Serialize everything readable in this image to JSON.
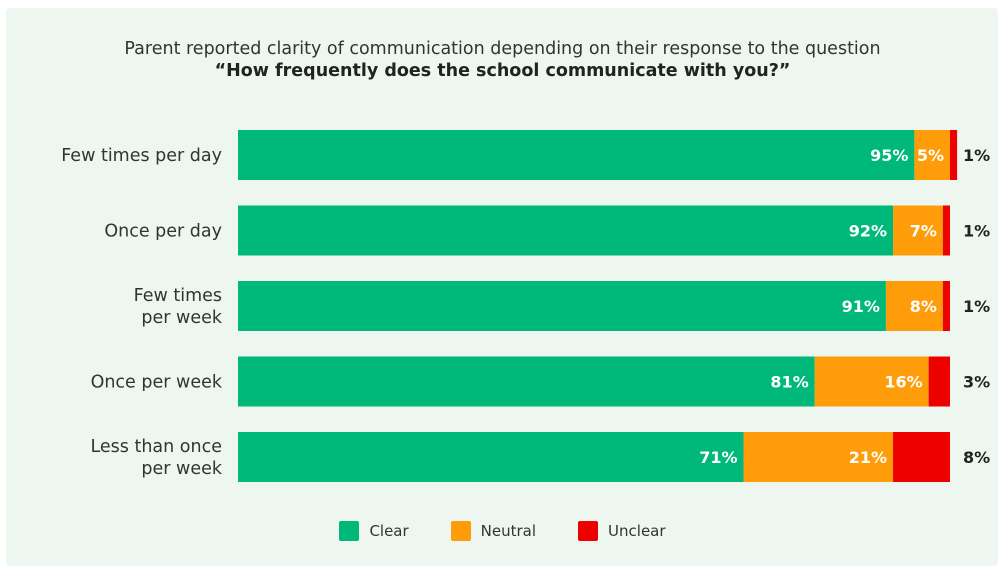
{
  "title": "Parent reported clarity of communication depending on their response to the question",
  "subtitle": "“How frequently does the school communicate with you?”",
  "colors": {
    "clear": "#00b87a",
    "neutral": "#ff9c0a",
    "unclear": "#ed0000",
    "background": "#edf7ef"
  },
  "legend": [
    {
      "label": "Clear",
      "color": "#00b87a"
    },
    {
      "label": "Neutral",
      "color": "#ff9c0a"
    },
    {
      "label": "Unclear",
      "color": "#ed0000"
    }
  ],
  "chart_data": {
    "type": "bar",
    "orientation": "horizontal",
    "stacked": true,
    "categories": [
      [
        "Few times per day"
      ],
      [
        "Once per day"
      ],
      [
        "Few times",
        "per week"
      ],
      [
        "Once per week"
      ],
      [
        "Less than once",
        "per week"
      ]
    ],
    "series": [
      {
        "name": "Clear",
        "values": [
          95,
          92,
          91,
          81,
          71
        ],
        "labels": [
          "95%",
          "92%",
          "91%",
          "81%",
          "71%"
        ]
      },
      {
        "name": "Neutral",
        "values": [
          5,
          7,
          8,
          16,
          21
        ],
        "labels": [
          "5%",
          "7%",
          "8%",
          "16%",
          "21%"
        ]
      },
      {
        "name": "Unclear",
        "values": [
          1,
          1,
          1,
          3,
          8
        ],
        "labels": [
          "1%",
          "1%",
          "1%",
          "3%",
          "8%"
        ]
      }
    ],
    "xlim": [
      0,
      100
    ],
    "grid": false,
    "legend_position": "bottom-center"
  }
}
